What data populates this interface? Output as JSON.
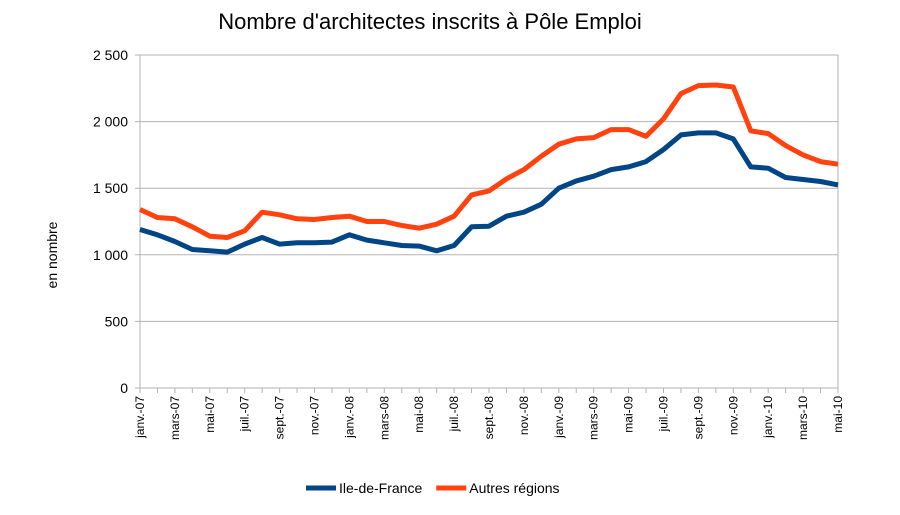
{
  "chart_data": {
    "type": "line",
    "title": "Nombre d'architectes inscrits à Pôle Emploi",
    "xlabel": "",
    "ylabel": "en nombre",
    "ylim": [
      0,
      2500
    ],
    "yticks": [
      0,
      500,
      1000,
      1500,
      2000,
      2500
    ],
    "ytick_labels": [
      "0",
      "500",
      "1 000",
      "1 500",
      "2 000",
      "2 500"
    ],
    "grid": true,
    "legend": "bottom",
    "x_count": 41,
    "xtick_labels": [
      "janv.-07",
      "mars-07",
      "mai-07",
      "juil.-07",
      "sept.-07",
      "nov.-07",
      "janv.-08",
      "mars-08",
      "mai-08",
      "juil.-08",
      "sept.-08",
      "nov.-08",
      "janv.-09",
      "mars-09",
      "mai-09",
      "juil.-09",
      "sept.-09",
      "nov.-09",
      "janv.-10",
      "mars-10",
      "mai-10"
    ],
    "series": [
      {
        "name": "Ile-de-France",
        "color": "#004586",
        "values": [
          1190,
          1150,
          1100,
          1040,
          1030,
          1020,
          1080,
          1130,
          1080,
          1090,
          1090,
          1095,
          1150,
          1110,
          1090,
          1070,
          1065,
          1030,
          1070,
          1210,
          1215,
          1290,
          1320,
          1380,
          1500,
          1555,
          1590,
          1640,
          1660,
          1700,
          1790,
          1900,
          1915,
          1915,
          1870,
          1660,
          1650,
          1580,
          1565,
          1550,
          1525
        ]
      },
      {
        "name": "Autres régions",
        "color": "#ff420e",
        "values": [
          1340,
          1280,
          1270,
          1210,
          1140,
          1130,
          1180,
          1320,
          1300,
          1270,
          1265,
          1280,
          1290,
          1250,
          1250,
          1220,
          1200,
          1230,
          1290,
          1450,
          1480,
          1570,
          1640,
          1740,
          1830,
          1870,
          1880,
          1940,
          1940,
          1890,
          2020,
          2210,
          2270,
          2275,
          2260,
          1930,
          1910,
          1820,
          1750,
          1700,
          1680
        ]
      }
    ]
  }
}
